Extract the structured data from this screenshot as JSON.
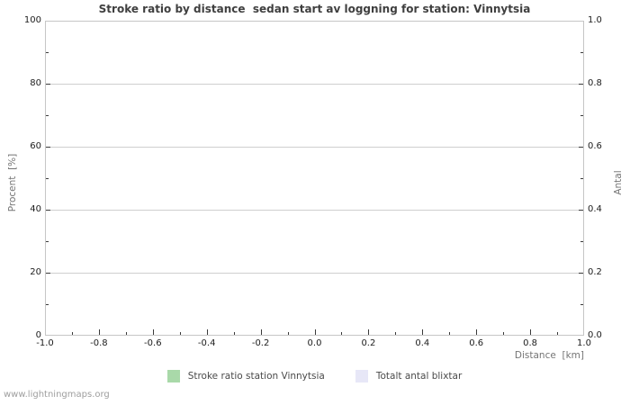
{
  "footer": "www.lightningmaps.org",
  "chart_data": {
    "type": "line",
    "title": "Stroke ratio by distance  sedan start av loggning for station: Vinnytsia",
    "x_axis": {
      "label": "Distance  [km]",
      "min": -1.0,
      "max": 1.0,
      "major_step": 0.2,
      "minor_step": 0.1,
      "tick_labels": [
        "-1.0",
        "-0.8",
        "-0.6",
        "-0.4",
        "-0.2",
        "0.0",
        "0.2",
        "0.4",
        "0.6",
        "0.8",
        "1.0"
      ]
    },
    "y_axis_left": {
      "label": "Procent  [%]",
      "min": 0,
      "max": 100,
      "major_step": 20,
      "minor_step": 10,
      "tick_labels": [
        "0",
        "20",
        "40",
        "60",
        "80",
        "100"
      ]
    },
    "y_axis_right": {
      "label": "Antal",
      "min": 0.0,
      "max": 1.0,
      "major_step": 0.2,
      "minor_step": 0.1,
      "tick_labels": [
        "0.0",
        "0.2",
        "0.4",
        "0.6",
        "0.8",
        "1.0"
      ]
    },
    "grid": "horizontal-major-only",
    "legend_position": "bottom-center",
    "series": [
      {
        "name": "Stroke ratio station Vinnytsia",
        "color": "#a9d9a9",
        "values": []
      },
      {
        "name": "Totalt antal blixtar",
        "color": "#e7e7f7",
        "values": []
      }
    ],
    "colors": {
      "gridline": "#cfcfcf",
      "border": "#c6c6c6",
      "tick": "#3a3a3a"
    }
  },
  "legend": {
    "items": [
      {
        "label": "Stroke ratio station Vinnytsia",
        "color": "#a9d9a9"
      },
      {
        "label": "Totalt antal blixtar",
        "color": "#e7e7f7"
      }
    ]
  }
}
